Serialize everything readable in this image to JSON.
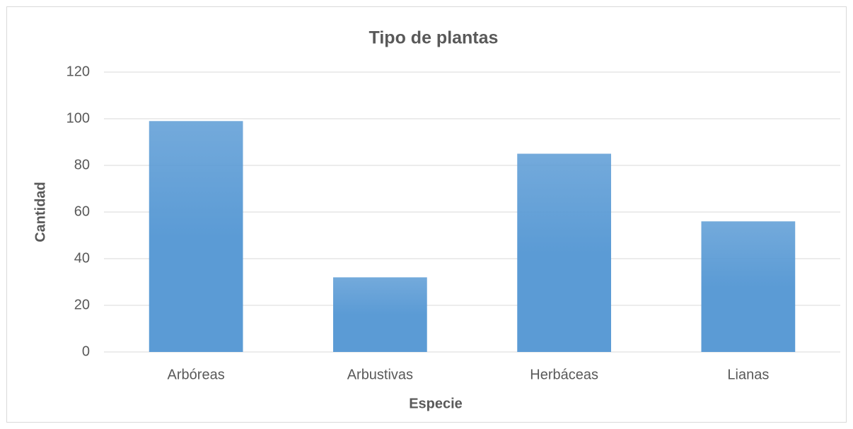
{
  "chart_data": {
    "type": "bar",
    "title": "Tipo de plantas",
    "x_label": "Especie",
    "y_label": "Cantidad",
    "categories": [
      "Arbóreas",
      "Arbustivas",
      "Herbáceas",
      "Lianas"
    ],
    "values": [
      99,
      32,
      85,
      56
    ],
    "color": "#5b9bd5",
    "ylim": [
      0,
      120
    ],
    "yticks": [
      0,
      20,
      40,
      60,
      80,
      100,
      120
    ],
    "grid": true
  }
}
